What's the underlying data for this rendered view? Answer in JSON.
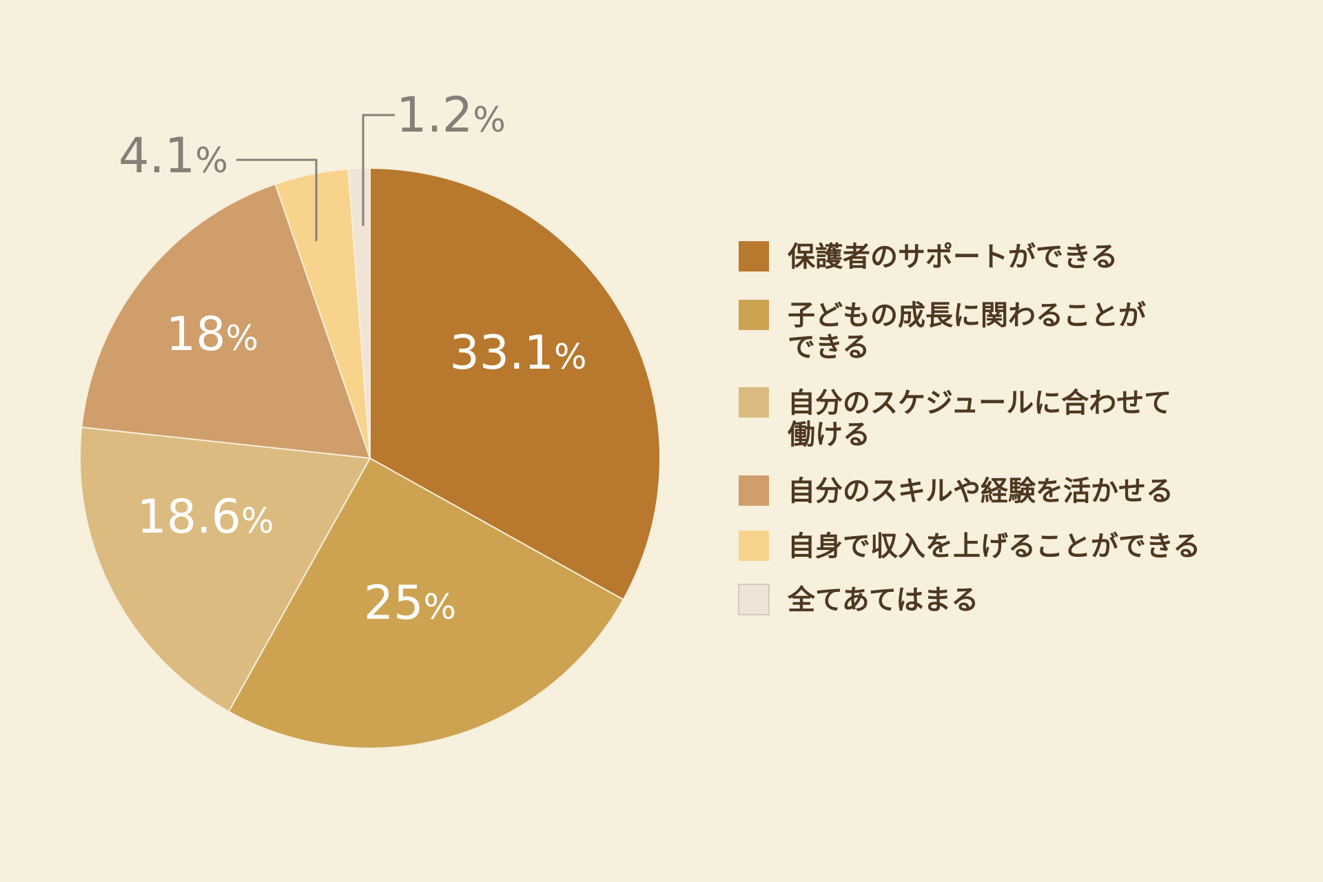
{
  "chart_data": {
    "type": "pie",
    "start": "top",
    "direction": "clockwise",
    "slices": [
      {
        "label": "保護者のサポートができる",
        "legend_lines": [
          "保護者のサポートができる"
        ],
        "value": 33.1,
        "display": "33.1",
        "color": "#b8782d",
        "label_position": "inside"
      },
      {
        "label": "子どもの成長に関わることができる",
        "legend_lines": [
          "子どもの成長に関わることが",
          "できる"
        ],
        "value": 25,
        "display": "25",
        "color": "#cda352",
        "label_position": "inside"
      },
      {
        "label": "自分のスケジュールに合わせて働ける",
        "legend_lines": [
          "自分のスケジュールに合わせて",
          "働ける"
        ],
        "value": 18.6,
        "display": "18.6",
        "color": "#dbbb80",
        "label_position": "inside"
      },
      {
        "label": "自分のスキルや経験を活かせる",
        "legend_lines": [
          "自分のスキルや経験を活かせる"
        ],
        "value": 18,
        "display": "18",
        "color": "#cf9e6b",
        "label_position": "inside"
      },
      {
        "label": "自身で収入を上げることができる",
        "legend_lines": [
          "自身で収入を上げることができる"
        ],
        "value": 4.1,
        "display": "4.1",
        "color": "#f8d38c",
        "label_position": "outside"
      },
      {
        "label": "全てあてはまる",
        "legend_lines": [
          "全てあてはまる"
        ],
        "value": 1.2,
        "display": "1.2",
        "color": "#f0e4d6",
        "label_position": "outside"
      }
    ],
    "percent_sign": "%",
    "legend_position": "right",
    "colors": {
      "background": "#f6f0dd",
      "inside_label": "#ffffff",
      "outside_label": "#857f79",
      "leader_line": "#857f79",
      "legend_text": "#4e3721"
    }
  }
}
